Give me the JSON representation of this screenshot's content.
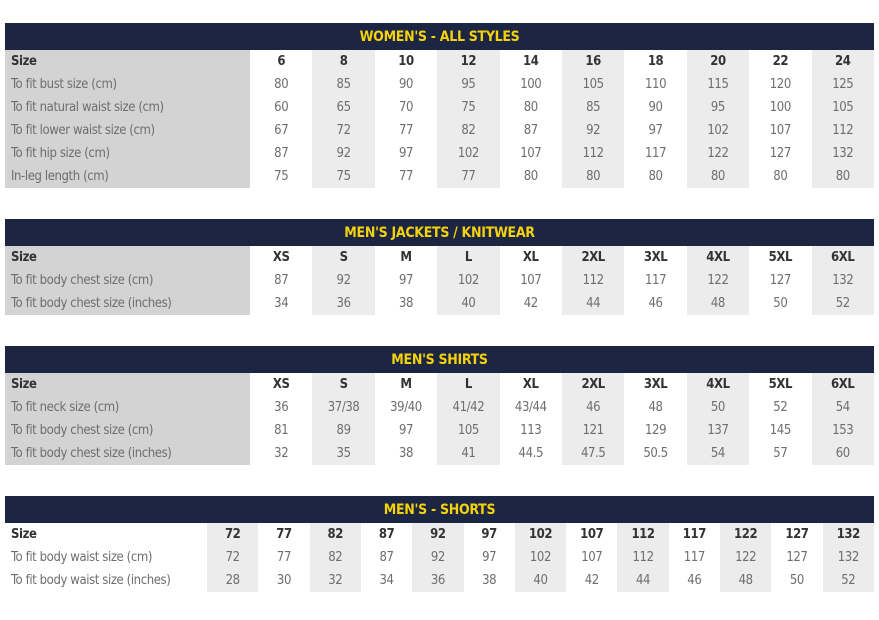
{
  "colors": {
    "header_bg": "#1c2541",
    "header_text": "#f5d20a",
    "label_col": "#d3d3d3",
    "alt_col": "#ececec"
  },
  "tables": [
    {
      "title": "WOMEN'S - ALL STYLES",
      "label_shaded": true,
      "rows": [
        {
          "label": "Size",
          "values": [
            "6",
            "8",
            "10",
            "12",
            "14",
            "16",
            "18",
            "20",
            "22",
            "24"
          ]
        },
        {
          "label": "To fit bust size (cm)",
          "values": [
            "80",
            "85",
            "90",
            "95",
            "100",
            "105",
            "110",
            "115",
            "120",
            "125"
          ]
        },
        {
          "label": "To fit natural waist size (cm)",
          "values": [
            "60",
            "65",
            "70",
            "75",
            "80",
            "85",
            "90",
            "95",
            "100",
            "105"
          ]
        },
        {
          "label": "To fit lower waist size (cm)",
          "values": [
            "67",
            "72",
            "77",
            "82",
            "87",
            "92",
            "97",
            "102",
            "107",
            "112"
          ]
        },
        {
          "label": "To fit hip size (cm)",
          "values": [
            "87",
            "92",
            "97",
            "102",
            "107",
            "112",
            "117",
            "122",
            "127",
            "132"
          ]
        },
        {
          "label": "In-leg length (cm)",
          "values": [
            "75",
            "75",
            "77",
            "77",
            "80",
            "80",
            "80",
            "80",
            "80",
            "80"
          ]
        }
      ]
    },
    {
      "title": "MEN'S JACKETS / KNITWEAR",
      "label_shaded": true,
      "rows": [
        {
          "label": "Size",
          "values": [
            "XS",
            "S",
            "M",
            "L",
            "XL",
            "2XL",
            "3XL",
            "4XL",
            "5XL",
            "6XL"
          ]
        },
        {
          "label": "To fit body chest size (cm)",
          "values": [
            "87",
            "92",
            "97",
            "102",
            "107",
            "112",
            "117",
            "122",
            "127",
            "132"
          ]
        },
        {
          "label": "To fit body chest size (inches)",
          "values": [
            "34",
            "36",
            "38",
            "40",
            "42",
            "44",
            "46",
            "48",
            "50",
            "52"
          ]
        }
      ]
    },
    {
      "title": "MEN'S SHIRTS",
      "label_shaded": true,
      "rows": [
        {
          "label": "Size",
          "values": [
            "XS",
            "S",
            "M",
            "L",
            "XL",
            "2XL",
            "3XL",
            "4XL",
            "5XL",
            "6XL"
          ]
        },
        {
          "label": "To fit neck size (cm)",
          "values": [
            "36",
            "37/38",
            "39/40",
            "41/42",
            "43/44",
            "46",
            "48",
            "50",
            "52",
            "54"
          ]
        },
        {
          "label": "To fit body chest size (cm)",
          "values": [
            "81",
            "89",
            "97",
            "105",
            "113",
            "121",
            "129",
            "137",
            "145",
            "153"
          ]
        },
        {
          "label": "To fit body chest size (inches)",
          "values": [
            "32",
            "35",
            "38",
            "41",
            "44.5",
            "47.5",
            "50.5",
            "54",
            "57",
            "60"
          ]
        }
      ]
    },
    {
      "title": "MEN'S - SHORTS",
      "label_shaded": false,
      "rows": [
        {
          "label": "Size",
          "values": [
            "72",
            "77",
            "82",
            "87",
            "92",
            "97",
            "102",
            "107",
            "112",
            "117",
            "122",
            "127",
            "132"
          ]
        },
        {
          "label": "To fit body waist size (cm)",
          "values": [
            "72",
            "77",
            "82",
            "87",
            "92",
            "97",
            "102",
            "107",
            "112",
            "117",
            "122",
            "127",
            "132"
          ]
        },
        {
          "label": "To fit body waist size (inches)",
          "values": [
            "28",
            "30",
            "32",
            "34",
            "36",
            "38",
            "40",
            "42",
            "44",
            "46",
            "48",
            "50",
            "52"
          ]
        }
      ]
    }
  ]
}
